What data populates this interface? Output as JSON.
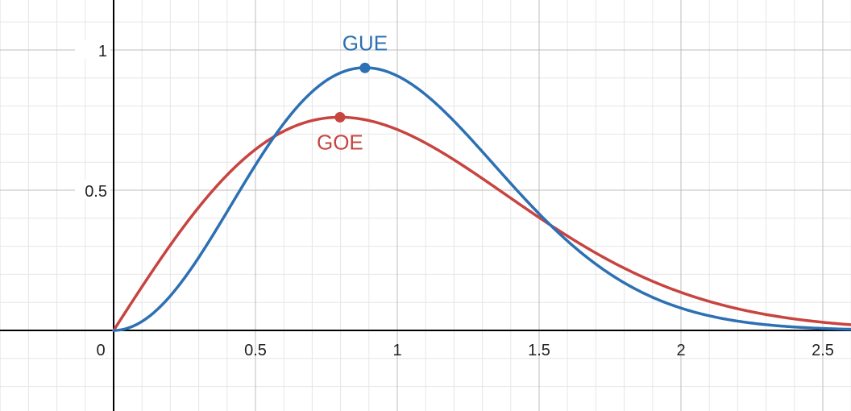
{
  "chart_data": {
    "type": "line",
    "title": "",
    "xlabel": "",
    "ylabel": "",
    "xlim": [
      -0.4,
      2.6
    ],
    "ylim": [
      -0.28,
      1.17
    ],
    "grid": true,
    "minor_grid": true,
    "x_ticks": [
      {
        "value": 0,
        "label": "0"
      },
      {
        "value": 0.5,
        "label": "0.5"
      },
      {
        "value": 1,
        "label": "1"
      },
      {
        "value": 1.5,
        "label": "1.5"
      },
      {
        "value": 2,
        "label": "2"
      },
      {
        "value": 2.5,
        "label": "2.5"
      }
    ],
    "y_ticks": [
      {
        "value": 0.5,
        "label": "0.5"
      },
      {
        "value": 1,
        "label": "1"
      }
    ],
    "series": [
      {
        "name": "GOE",
        "color": "#c74440",
        "formula": "(pi/2)*s*exp(-pi*s^2/4)",
        "x": [
          0,
          0.1,
          0.2,
          0.3,
          0.4,
          0.5,
          0.6,
          0.7,
          0.8,
          0.9,
          1.0,
          1.1,
          1.2,
          1.3,
          1.4,
          1.5,
          1.6,
          1.7,
          1.8,
          1.9,
          2.0,
          2.1,
          2.2,
          2.3,
          2.4,
          2.5,
          2.6
        ],
        "values": [
          0,
          0.156,
          0.303,
          0.424,
          0.52,
          0.645,
          0.708,
          0.741,
          0.76,
          0.727,
          0.716,
          0.671,
          0.609,
          0.539,
          0.467,
          0.403,
          0.33,
          0.27,
          0.221,
          0.167,
          0.136,
          0.103,
          0.071,
          0.05,
          0.035,
          0.02,
          0.012
        ],
        "marker": {
          "x": 0.798,
          "y": 0.76
        },
        "label": "GOE"
      },
      {
        "name": "GUE",
        "color": "#2d70b3",
        "formula": "(32/pi^2)*s^2*exp(-4*s^2/pi)",
        "x": [
          0,
          0.1,
          0.2,
          0.3,
          0.4,
          0.5,
          0.6,
          0.7,
          0.8,
          0.9,
          1.0,
          1.1,
          1.2,
          1.3,
          1.4,
          1.5,
          1.6,
          1.7,
          1.8,
          1.9,
          2.0,
          2.1,
          2.2,
          2.3,
          2.4,
          2.5,
          2.6
        ],
        "values": [
          0,
          0.032,
          0.124,
          0.26,
          0.421,
          0.593,
          0.736,
          0.865,
          0.931,
          0.936,
          0.909,
          0.839,
          0.74,
          0.626,
          0.508,
          0.397,
          0.299,
          0.217,
          0.151,
          0.101,
          0.066,
          0.041,
          0.025,
          0.014,
          0.008,
          0.004,
          0.002
        ],
        "marker": {
          "x": 0.886,
          "y": 0.936
        },
        "label": "GUE"
      }
    ],
    "colors": {
      "grid_major": "#bdbdbd",
      "grid_minor": "#e6e6e6",
      "axis": "#000000"
    }
  }
}
